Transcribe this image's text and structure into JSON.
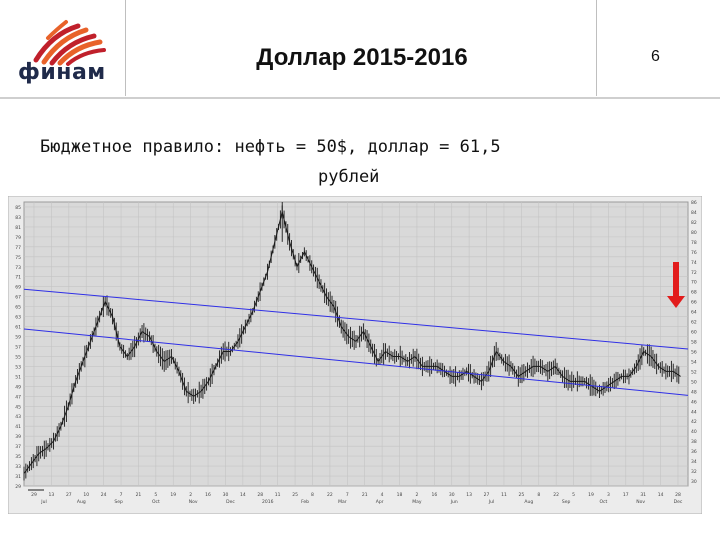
{
  "header": {
    "title": "Доллар 2015-2016",
    "page_number": "6",
    "logo_text": "финам"
  },
  "subtitle": {
    "line1": "Бюджетное правило: нефть = 50$, доллар = 61,5",
    "line2": "рублей"
  },
  "colors": {
    "price_line": "#1a1a1a",
    "channel_line": "#2f2fe6",
    "arrow": "#e21c1c",
    "plot_bg": "#d9d9d9",
    "logo_orange": "#e8622a",
    "logo_red": "#c0202b"
  },
  "chart_data": {
    "type": "line",
    "ylim": [
      29,
      86
    ],
    "left_ticks": [
      "85",
      "83",
      "81",
      "79",
      "77",
      "75",
      "73",
      "71",
      "69",
      "67",
      "65",
      "63",
      "61",
      "59",
      "57",
      "55",
      "53",
      "51",
      "49",
      "47",
      "45",
      "43",
      "41",
      "39",
      "37",
      "35",
      "33",
      "31",
      "29"
    ],
    "right_ticks": [
      "86",
      "84",
      "82",
      "80",
      "78",
      "76",
      "74",
      "72",
      "70",
      "68",
      "66",
      "64",
      "62",
      "60",
      "58",
      "56",
      "54",
      "52",
      "50",
      "48",
      "46",
      "44",
      "42",
      "40",
      "38",
      "36",
      "34",
      "32",
      "30"
    ],
    "x_days": [
      "29",
      "13",
      "27",
      "10",
      "24",
      "7",
      "21",
      "5",
      "19",
      "2",
      "16",
      "30",
      "14",
      "28",
      "11",
      "25",
      "8",
      "22",
      "7",
      "21",
      "4",
      "18",
      "2",
      "16",
      "30",
      "13",
      "27",
      "11",
      "25",
      "8",
      "22",
      "5",
      "19",
      "3",
      "17",
      "31",
      "14",
      "28"
    ],
    "x_months": [
      "Jul",
      "Aug",
      "Sep",
      "Oct",
      "Nov",
      "Dec",
      "2016",
      "Feb",
      "Mar",
      "Apr",
      "May",
      "Jun",
      "Jul",
      "Aug",
      "Sep",
      "Oct",
      "Nov",
      "Dec"
    ],
    "series": [
      {
        "values": [
          [
            0,
            31.5
          ],
          [
            2,
            33.5
          ],
          [
            4,
            35.5
          ],
          [
            6,
            36.5
          ],
          [
            8,
            38
          ],
          [
            10,
            41
          ],
          [
            12,
            45
          ],
          [
            14,
            50
          ],
          [
            16,
            54
          ],
          [
            18,
            58
          ],
          [
            20,
            62
          ],
          [
            22,
            66
          ],
          [
            24,
            63
          ],
          [
            26,
            57
          ],
          [
            28,
            55
          ],
          [
            30,
            57
          ],
          [
            32,
            60
          ],
          [
            34,
            59
          ],
          [
            36,
            56
          ],
          [
            38,
            54
          ],
          [
            40,
            55
          ],
          [
            42,
            52
          ],
          [
            44,
            48
          ],
          [
            46,
            47
          ],
          [
            48,
            48
          ],
          [
            50,
            50
          ],
          [
            52,
            53
          ],
          [
            54,
            56
          ],
          [
            56,
            56
          ],
          [
            58,
            58
          ],
          [
            60,
            61
          ],
          [
            62,
            64
          ],
          [
            64,
            68
          ],
          [
            66,
            72
          ],
          [
            68,
            78
          ],
          [
            70,
            84
          ],
          [
            72,
            78
          ],
          [
            74,
            73
          ],
          [
            76,
            76
          ],
          [
            78,
            73
          ],
          [
            80,
            70
          ],
          [
            82,
            67
          ],
          [
            84,
            65
          ],
          [
            86,
            61
          ],
          [
            88,
            59
          ],
          [
            90,
            58
          ],
          [
            92,
            60
          ],
          [
            94,
            57
          ],
          [
            96,
            54
          ],
          [
            98,
            56
          ],
          [
            100,
            55
          ],
          [
            102,
            55
          ],
          [
            104,
            54
          ],
          [
            106,
            55
          ],
          [
            108,
            53
          ],
          [
            110,
            53
          ],
          [
            112,
            53
          ],
          [
            114,
            52
          ],
          [
            116,
            51
          ],
          [
            118,
            51
          ],
          [
            120,
            52
          ],
          [
            122,
            51
          ],
          [
            124,
            50
          ],
          [
            126,
            52
          ],
          [
            128,
            56
          ],
          [
            130,
            54
          ],
          [
            132,
            53
          ],
          [
            134,
            51
          ],
          [
            136,
            52
          ],
          [
            138,
            53
          ],
          [
            140,
            53
          ],
          [
            142,
            52
          ],
          [
            144,
            53
          ],
          [
            146,
            51
          ],
          [
            148,
            50
          ],
          [
            150,
            50
          ],
          [
            152,
            50
          ],
          [
            154,
            49
          ],
          [
            156,
            48
          ],
          [
            158,
            49
          ],
          [
            160,
            50
          ],
          [
            162,
            51
          ],
          [
            164,
            51
          ],
          [
            166,
            53
          ],
          [
            168,
            56
          ],
          [
            170,
            55
          ],
          [
            172,
            53
          ],
          [
            174,
            52
          ],
          [
            176,
            52
          ],
          [
            178,
            51
          ]
        ]
      }
    ],
    "channel": [
      {
        "from": [
          0,
          68.5
        ],
        "to": [
          180,
          56.5
        ]
      },
      {
        "from": [
          0,
          60.5
        ],
        "to": [
          180,
          47.2
        ]
      }
    ],
    "annotation": "down-arrow",
    "grid": true
  }
}
